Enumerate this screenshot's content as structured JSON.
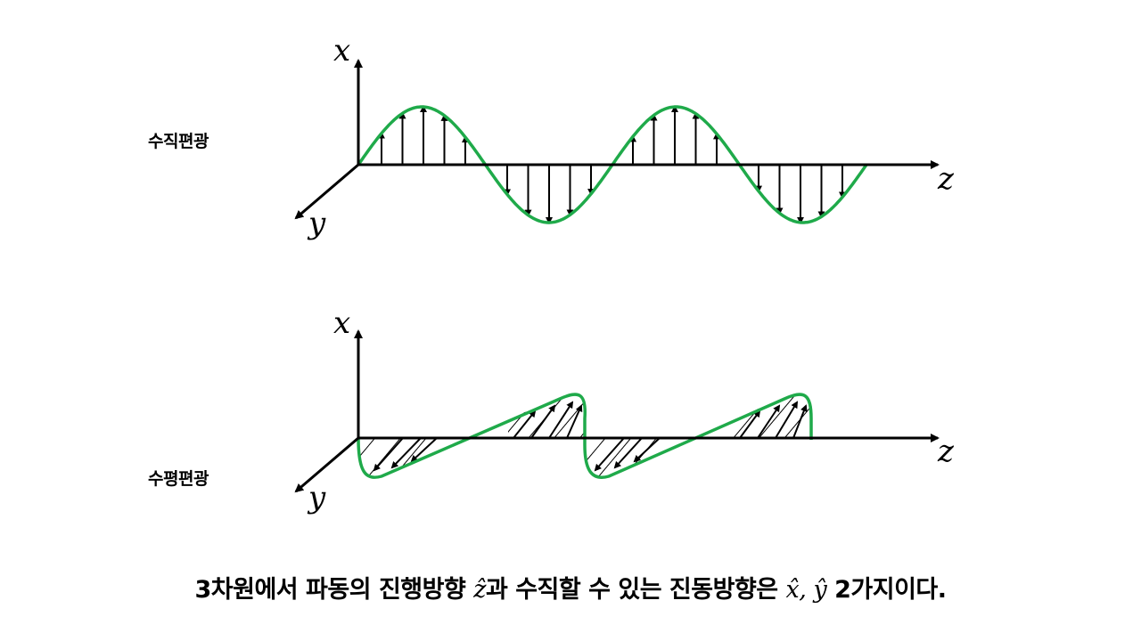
{
  "panels": [
    {
      "label": "수직편광",
      "axes": {
        "vertical": "x",
        "depth": "y",
        "propagation": "z"
      },
      "arrow_direction": "up-down"
    },
    {
      "label": "수평편광",
      "axes": {
        "vertical": "x",
        "depth": "y",
        "propagation": "z"
      },
      "arrow_direction": "oblique"
    }
  ],
  "caption": {
    "prefix": "3차원에서 파동의 진행방향 ",
    "z_hat": "ẑ",
    "middle": "과 수직할 수 있는 진동방향은 ",
    "x_hat": "x̂, ŷ",
    "suffix": " 2가지이다."
  },
  "colors": {
    "wave": "#1faa4a",
    "axis": "#000000"
  }
}
